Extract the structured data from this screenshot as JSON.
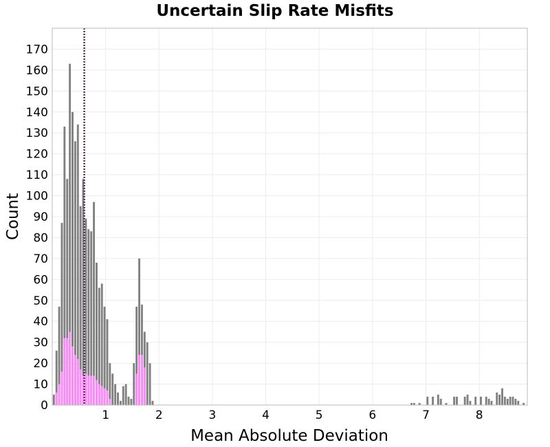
{
  "chart_data": {
    "type": "bar",
    "title": "Uncertain Slip Rate Misfits",
    "xlabel": "Mean Absolute Deviation",
    "ylabel": "Count",
    "xlim": [
      0.0,
      8.9
    ],
    "ylim": [
      0,
      180
    ],
    "xticks": [
      1,
      2,
      3,
      4,
      5,
      6,
      7,
      8
    ],
    "yticks": [
      0,
      10,
      20,
      30,
      40,
      50,
      60,
      70,
      80,
      90,
      100,
      110,
      120,
      130,
      140,
      150,
      160,
      170
    ],
    "bin_width": 0.05,
    "grid": true,
    "reference_line": {
      "x": 0.6,
      "style": "dotted"
    },
    "colors": {
      "background_series": "#808080",
      "overlay_series": "#ff88ff",
      "reference_line": "#5a2a5a"
    },
    "series": [
      {
        "color": "#808080",
        "x": [
          0.03,
          0.08,
          0.13,
          0.18,
          0.23,
          0.28,
          0.33,
          0.38,
          0.43,
          0.48,
          0.53,
          0.58,
          0.63,
          0.68,
          0.73,
          0.78,
          0.83,
          0.88,
          0.93,
          0.98,
          1.03,
          1.08,
          1.13,
          1.18,
          1.23,
          1.28,
          1.33,
          1.38,
          1.43,
          1.48,
          1.53,
          1.58,
          1.63,
          1.68,
          1.73,
          1.78,
          1.83,
          1.88,
          6.73,
          6.78,
          6.88,
          7.03,
          7.13,
          7.23,
          7.28,
          7.38,
          7.53,
          7.58,
          7.73,
          7.78,
          7.83,
          7.93,
          8.03,
          8.13,
          8.18,
          8.23,
          8.33,
          8.38,
          8.43,
          8.48,
          8.53,
          8.58,
          8.63,
          8.68,
          8.73,
          8.83
        ],
        "values": [
          5,
          26,
          47,
          87,
          133,
          108,
          163,
          140,
          126,
          134,
          95,
          108,
          89,
          84,
          83,
          97,
          68,
          56,
          58,
          47,
          41,
          20,
          15,
          10,
          6,
          2,
          9,
          10,
          4,
          3,
          20,
          47,
          70,
          48,
          35,
          30,
          20,
          2,
          1,
          1,
          1,
          4,
          4,
          5,
          3,
          1,
          4,
          4,
          4,
          5,
          2,
          4,
          4,
          4,
          3,
          2,
          6,
          5,
          8,
          4,
          3,
          4,
          4,
          3,
          2,
          1
        ]
      },
      {
        "color": "#ff88ff",
        "x": [
          0.08,
          0.13,
          0.18,
          0.23,
          0.28,
          0.33,
          0.38,
          0.43,
          0.48,
          0.53,
          0.58,
          0.63,
          0.68,
          0.73,
          0.78,
          0.83,
          0.88,
          0.93,
          0.98,
          1.03,
          1.08,
          1.58,
          1.63,
          1.68,
          1.73
        ],
        "values": [
          6,
          10,
          16,
          32,
          32,
          35,
          28,
          24,
          22,
          17,
          14,
          15,
          14,
          14,
          14,
          12,
          10,
          9,
          8,
          7,
          3,
          15,
          24,
          24,
          18
        ]
      }
    ]
  }
}
